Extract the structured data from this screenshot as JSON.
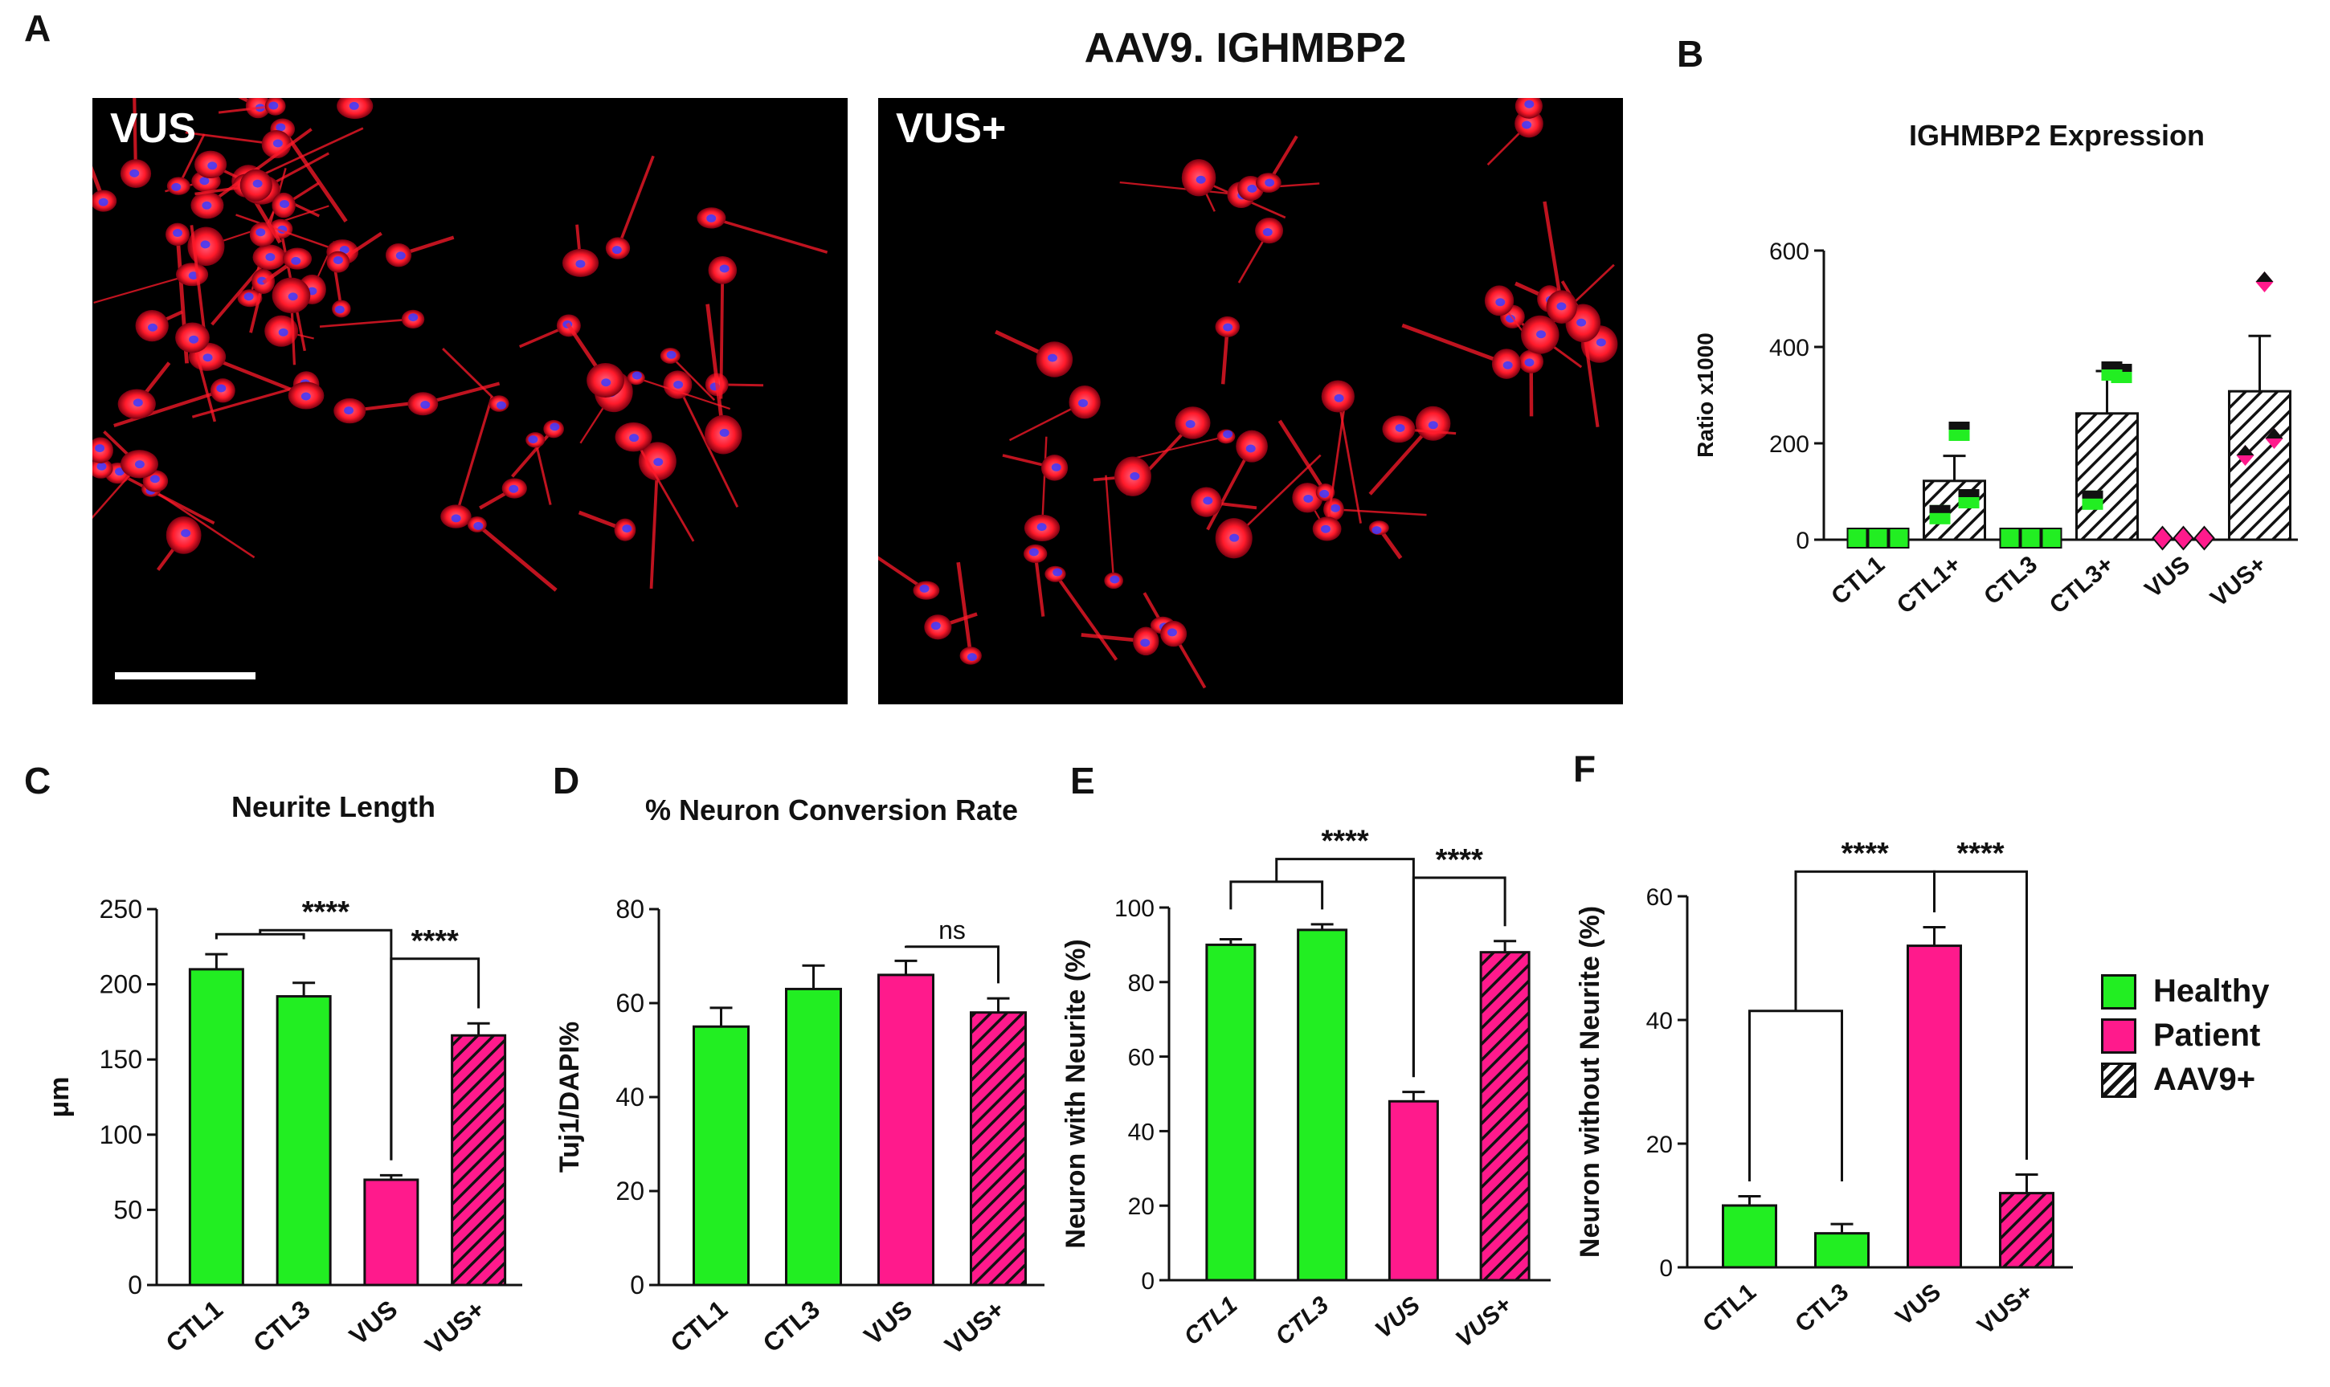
{
  "colors": {
    "healthy": "#22ee22",
    "patient": "#ff1a8c",
    "axis": "#111111",
    "image_bg": "#000000",
    "cell_red": "#ff1a2a",
    "nucleus_blue": "#3a3aff"
  },
  "panel_letters": {
    "a": "A",
    "b": "B",
    "c": "C",
    "d": "D",
    "e": "E",
    "f": "F"
  },
  "panel_a": {
    "title": "AAV9. IGHMBP2",
    "left_label": "VUS",
    "right_label": "VUS+"
  },
  "legend": {
    "healthy": "Healthy",
    "patient": "Patient",
    "aav9": "AAV9+"
  },
  "chart_data": [
    {
      "id": "B",
      "type": "bar",
      "title": "IGHMBP2  Expression",
      "ylabel": "Ratio x1000",
      "ylim": [
        0,
        600
      ],
      "yticks": [
        "0",
        "200",
        "400",
        "600"
      ],
      "categories": [
        "CTL1",
        "CTL1+",
        "CTL3",
        "CTL3+",
        "VUS",
        "VUS+"
      ],
      "groups": [
        "healthy",
        "healthy",
        "healthy",
        "healthy",
        "patient",
        "patient"
      ],
      "hatched": [
        false,
        true,
        false,
        true,
        false,
        true
      ],
      "values": [
        0,
        122,
        0,
        262,
        0,
        308
      ],
      "errors": [
        0,
        52,
        0,
        88,
        0,
        115
      ],
      "points": [
        [
          0,
          0,
          0
        ],
        [
          52,
          85,
          225
        ],
        [
          0,
          0,
          0
        ],
        [
          82,
          345,
          350
        ],
        [
          0,
          0,
          0
        ],
        [
          175,
          210,
          535
        ]
      ],
      "comparisons": []
    },
    {
      "id": "C",
      "type": "bar",
      "title": "Neurite Length",
      "ylabel": "μm",
      "ylim": [
        0,
        250
      ],
      "yticks": [
        "0",
        "50",
        "100",
        "150",
        "200",
        "250"
      ],
      "categories": [
        "CTL1",
        "CTL3",
        "VUS",
        "VUS+"
      ],
      "groups": [
        "healthy",
        "healthy",
        "patient",
        "patient"
      ],
      "hatched": [
        false,
        false,
        false,
        true
      ],
      "values": [
        210,
        192,
        70,
        166
      ],
      "errors": [
        10,
        9,
        3,
        8
      ],
      "comparisons": [
        {
          "from": [
            0,
            1
          ],
          "to": [
            2
          ],
          "label": "****",
          "level": 236
        },
        {
          "from": [
            2
          ],
          "to": [
            3
          ],
          "label": "****",
          "level": 217
        }
      ]
    },
    {
      "id": "D",
      "type": "bar",
      "title": "% Neuron Conversion Rate",
      "ylabel": "Tuj1/DAPI%",
      "ylim": [
        0,
        80
      ],
      "yticks": [
        "0",
        "20",
        "40",
        "60",
        "80"
      ],
      "categories": [
        "CTL1",
        "CTL3",
        "VUS",
        "VUS+"
      ],
      "groups": [
        "healthy",
        "healthy",
        "patient",
        "patient"
      ],
      "hatched": [
        false,
        false,
        false,
        true
      ],
      "values": [
        55,
        63,
        66,
        58
      ],
      "errors": [
        4,
        5,
        3,
        3
      ],
      "comparisons": [
        {
          "from": [
            2
          ],
          "to": [
            3
          ],
          "label": "ns",
          "level": 72
        }
      ]
    },
    {
      "id": "E",
      "type": "bar",
      "title": "",
      "ylabel": "Neuron with Neurite (%)",
      "ylim": [
        0,
        100
      ],
      "yticks": [
        "0",
        "20",
        "40",
        "60",
        "80",
        "100"
      ],
      "categories": [
        "CTL1",
        "CTL3",
        "VUS",
        "VUS+"
      ],
      "groups": [
        "healthy",
        "healthy",
        "patient",
        "patient"
      ],
      "hatched": [
        false,
        false,
        false,
        true
      ],
      "values": [
        90,
        94,
        48,
        88
      ],
      "errors": [
        1.5,
        1.5,
        2.5,
        3
      ],
      "comparisons": [
        {
          "from": [
            0,
            1
          ],
          "to": [
            2
          ],
          "label": "****",
          "level": 113
        },
        {
          "from": [
            2
          ],
          "to": [
            3
          ],
          "label": "****",
          "level": 108
        }
      ]
    },
    {
      "id": "F",
      "type": "bar",
      "title": "",
      "ylabel": "Neuron without Neurite (%)",
      "ylim": [
        0,
        60
      ],
      "yticks": [
        "0",
        "20",
        "40",
        "60"
      ],
      "categories": [
        "CTL1",
        "CTL3",
        "VUS",
        "VUS+"
      ],
      "groups": [
        "healthy",
        "healthy",
        "patient",
        "patient"
      ],
      "hatched": [
        false,
        false,
        false,
        true
      ],
      "values": [
        10,
        5.5,
        52,
        12
      ],
      "errors": [
        1.5,
        1.5,
        3,
        3
      ],
      "comparisons": [
        {
          "from": [
            0,
            1
          ],
          "to": [
            2
          ],
          "label": "****",
          "level": 64
        },
        {
          "from": [
            2
          ],
          "to": [
            3
          ],
          "label": "****",
          "level": 64
        }
      ]
    }
  ]
}
